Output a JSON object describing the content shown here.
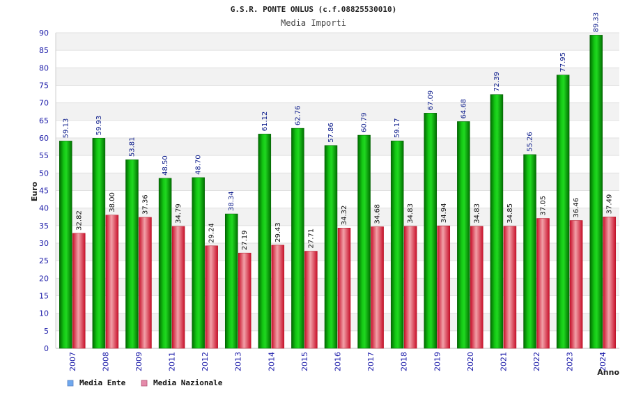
{
  "chart_data": {
    "type": "bar",
    "title": "G.S.R. PONTE ONLUS (c.f.08825530010)",
    "subtitle": "Media Importi",
    "xlabel": "Anno",
    "ylabel": "Euro",
    "ylim": [
      0,
      90
    ],
    "yticks": [
      0,
      5,
      10,
      15,
      20,
      25,
      30,
      35,
      40,
      45,
      50,
      55,
      60,
      65,
      70,
      75,
      80,
      85,
      90
    ],
    "grid": true,
    "legend_position": "bottom-left",
    "categories": [
      "2007",
      "2008",
      "2009",
      "2011",
      "2012",
      "2013",
      "2014",
      "2015",
      "2016",
      "2017",
      "2018",
      "2019",
      "2020",
      "2021",
      "2022",
      "2023",
      "2024"
    ],
    "series": [
      {
        "name": "Media Ente",
        "color": "#00a000",
        "legend_color": "#6fa8ee",
        "values": [
          59.13,
          59.93,
          53.81,
          48.5,
          48.7,
          38.34,
          61.12,
          62.76,
          57.86,
          60.79,
          59.17,
          67.09,
          64.68,
          72.39,
          55.26,
          77.95,
          89.33
        ],
        "labels": [
          "59.13",
          "59.93",
          "53.81",
          "48.50",
          "48.70",
          "38.34",
          "61.12",
          "62.76",
          "57.86",
          "60.79",
          "59.17",
          "67.09",
          "64.68",
          "72.39",
          "55.26",
          "77.95",
          "89.33"
        ]
      },
      {
        "name": "Media Nazionale",
        "color": "#dd2233",
        "legend_color": "#e58aaa",
        "values": [
          32.82,
          38.0,
          37.36,
          34.79,
          29.24,
          27.19,
          29.43,
          27.71,
          34.32,
          34.68,
          34.83,
          34.94,
          34.83,
          34.85,
          37.05,
          36.46,
          37.49
        ],
        "labels": [
          "32.82",
          "38.00",
          "37.36",
          "34.79",
          "29.24",
          "27.19",
          "29.43",
          "27.71",
          "34.32",
          "34.68",
          "34.83",
          "34.94",
          "34.83",
          "34.85",
          "37.05",
          "36.46",
          "37.49"
        ]
      }
    ]
  }
}
